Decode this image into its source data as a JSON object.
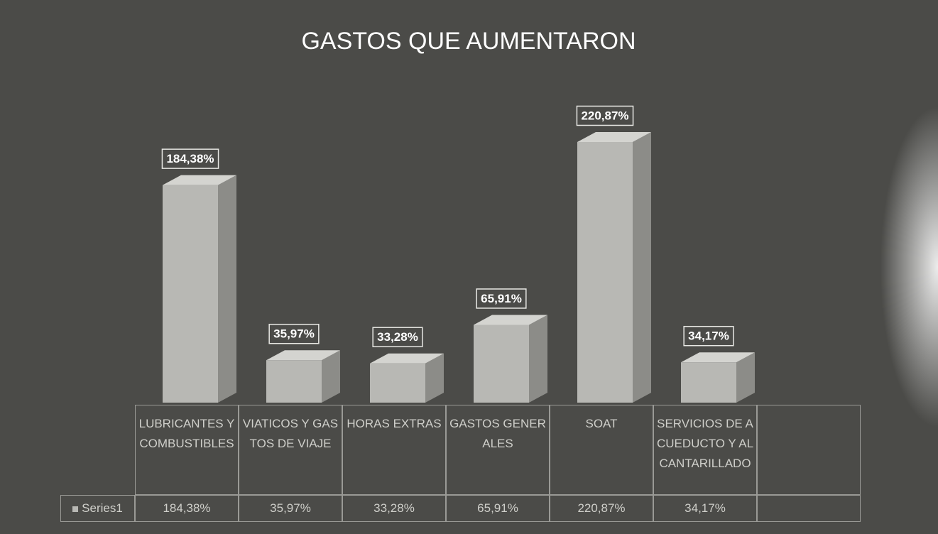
{
  "chart_data": {
    "type": "bar",
    "title": "GASTOS QUE AUMENTARON",
    "categories": [
      "LUBRICANTES Y COMBUSTIBLES",
      "VIATICOS Y GASTOS DE VIAJE",
      "HORAS EXTRAS",
      "GASTOS GENERALES",
      "SOAT",
      "SERVICIOS DE ACUEDUCTO Y ALCANTARILLADO"
    ],
    "series": [
      {
        "name": "Series1",
        "color": "#b8b8b4",
        "values": [
          184.38,
          35.97,
          33.28,
          65.91,
          220.87,
          34.17
        ],
        "value_labels": [
          "184,38%",
          "35,97%",
          "33,28%",
          "65,91%",
          "220,87%",
          "34,17%"
        ]
      }
    ]
  }
}
